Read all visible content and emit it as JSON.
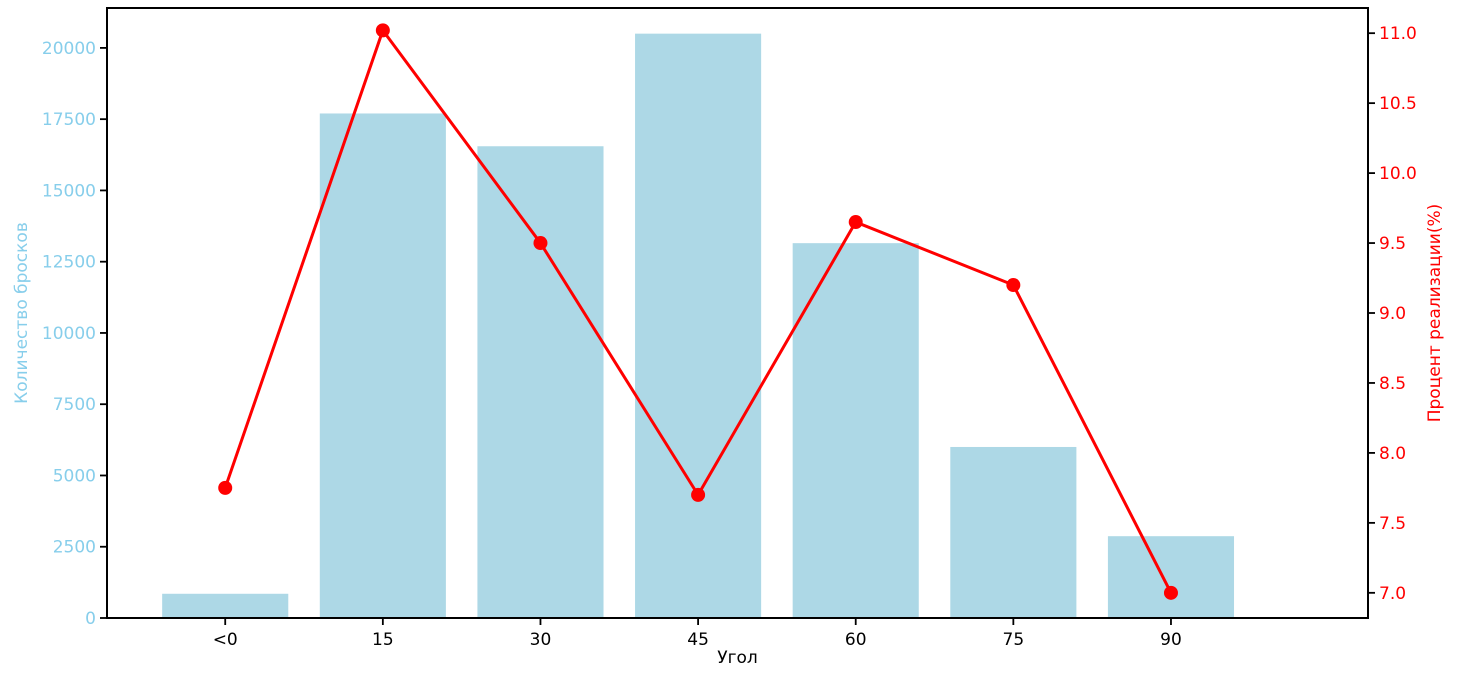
{
  "chart_data": {
    "type": "bar",
    "subtype": "dual-axis bar + line combo",
    "categories": [
      "<0",
      "15",
      "30",
      "45",
      "60",
      "75",
      "90"
    ],
    "series": [
      {
        "name": "Количество бросков",
        "type": "bar",
        "axis": "left",
        "color": "#ADD8E6",
        "values": [
          850,
          17700,
          16550,
          20500,
          13150,
          6000,
          2870
        ]
      },
      {
        "name": "Процент реализации(%)",
        "type": "line",
        "axis": "right",
        "color": "#FF0000",
        "marker": "circle",
        "values": [
          7.75,
          11.02,
          9.5,
          7.7,
          9.65,
          9.2,
          7.0
        ]
      }
    ],
    "title": "",
    "xlabel": "Угол",
    "ylabel_left": "Количество бросков",
    "ylabel_right": "Процент реализации(%)",
    "left_axis": {
      "min": 0,
      "max": 21400,
      "ticks": [
        0,
        2500,
        5000,
        7500,
        10000,
        12500,
        15000,
        17500,
        20000
      ],
      "label_color": "#87CEEB"
    },
    "right_axis": {
      "min": 6.82,
      "max": 11.18,
      "ticks": [
        7.0,
        7.5,
        8.0,
        8.5,
        9.0,
        9.5,
        10.0,
        10.5,
        11.0
      ],
      "tick_decimals": 1,
      "label_color": "#FF0000"
    },
    "grid": false,
    "legend_position": "none",
    "bar_width_fraction": 0.8,
    "spine_color": "#000000",
    "background_color": "#FFFFFF"
  }
}
